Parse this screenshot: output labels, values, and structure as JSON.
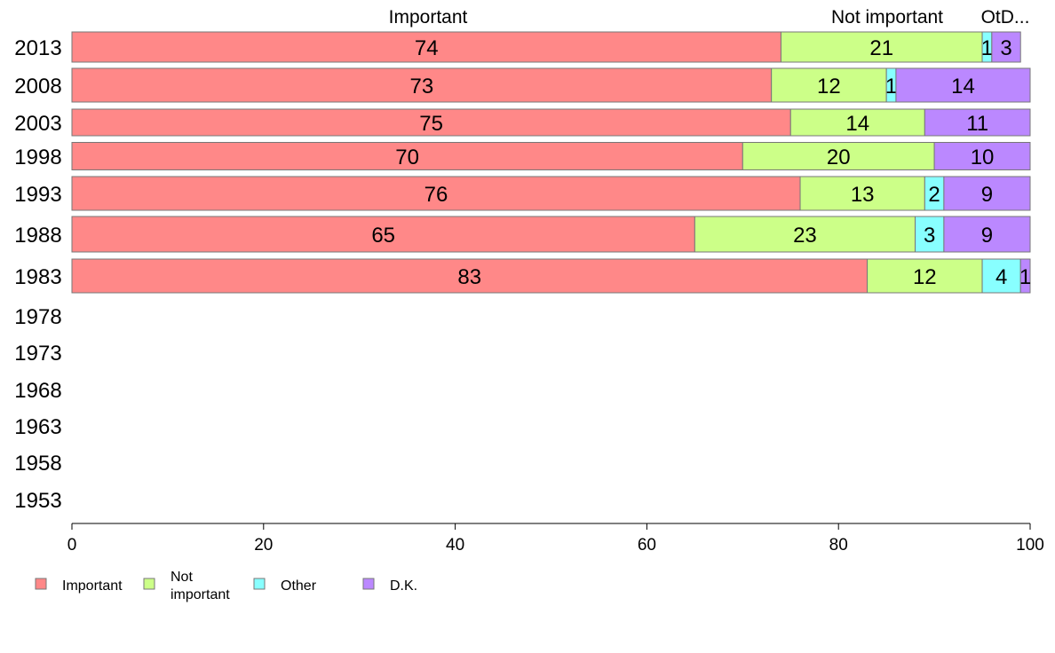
{
  "chart_data": {
    "type": "bar",
    "orientation": "horizontal",
    "stacked": true,
    "categories": [
      "2013",
      "2008",
      "2003",
      "1998",
      "1993",
      "1988",
      "1983",
      "1978",
      "1973",
      "1968",
      "1963",
      "1958",
      "1953"
    ],
    "series": [
      {
        "name": "Important",
        "color": "#ff8888",
        "values": [
          74,
          73,
          75,
          70,
          76,
          65,
          83,
          null,
          null,
          null,
          null,
          null,
          null
        ]
      },
      {
        "name": "Not important",
        "color": "#ccff88",
        "values": [
          21,
          12,
          14,
          20,
          13,
          23,
          12,
          null,
          null,
          null,
          null,
          null,
          null
        ]
      },
      {
        "name": "Other",
        "color": "#88ffff",
        "values": [
          1,
          1,
          0,
          0,
          2,
          3,
          4,
          null,
          null,
          null,
          null,
          null,
          null
        ]
      },
      {
        "name": "D.K.",
        "color": "#bb88ff",
        "values": [
          3,
          14,
          11,
          10,
          9,
          9,
          1,
          null,
          null,
          null,
          null,
          null,
          null
        ]
      }
    ],
    "column_headers": [
      "Important",
      "Not important",
      "OtD..."
    ],
    "legend_labels": [
      "Important",
      "Not\nimportant",
      "Other",
      "D.K."
    ],
    "legend_position": "bottom",
    "xlim": [
      0,
      100
    ],
    "xticks": [
      0,
      20,
      40,
      60,
      80,
      100
    ],
    "grid": false
  }
}
